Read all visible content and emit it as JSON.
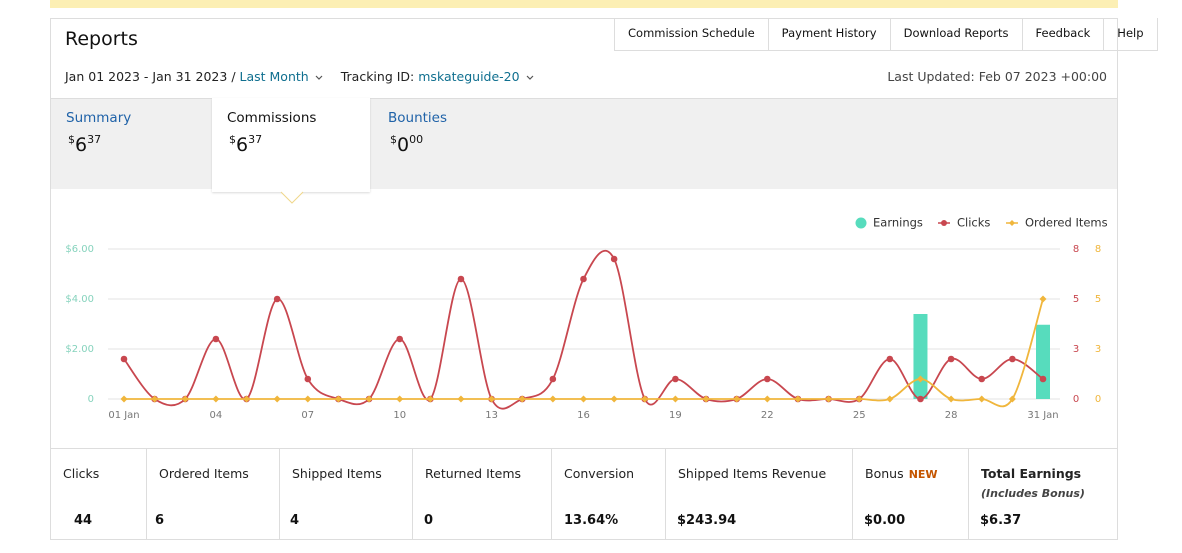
{
  "header": {
    "title": "Reports",
    "date_range": "Jan 01 2023 - Jan 31 2023",
    "separator": "/",
    "period": "Last Month",
    "tracking_label": "Tracking ID:",
    "tracking_id": "mskateguide-20",
    "last_updated": "Last Updated: Feb 07 2023 +00:00"
  },
  "nav": [
    "Commission Schedule",
    "Payment History",
    "Download Reports",
    "Feedback",
    "Help"
  ],
  "summary_tabs": [
    {
      "label": "Summary",
      "currency": "$",
      "whole": "6",
      "fraction": "37"
    },
    {
      "label": "Commissions",
      "currency": "$",
      "whole": "6",
      "fraction": "37"
    },
    {
      "label": "Bounties",
      "currency": "$",
      "whole": "0",
      "fraction": "00"
    }
  ],
  "chart_data": {
    "type": "line",
    "categories": [
      "01 Jan",
      null,
      null,
      "04",
      null,
      null,
      "07",
      null,
      null,
      "10",
      null,
      null,
      "13",
      null,
      null,
      "16",
      null,
      null,
      "19",
      null,
      null,
      "22",
      null,
      null,
      "25",
      null,
      null,
      "28",
      null,
      null,
      "31 Jan"
    ],
    "series": [
      {
        "name": "Earnings",
        "type": "bar",
        "color": "#57dcbd",
        "axis": "y",
        "values": [
          0,
          0,
          0,
          0,
          0,
          0,
          0,
          0,
          0,
          0,
          0,
          0,
          0,
          0,
          0,
          0,
          0,
          0,
          0,
          0,
          0,
          0,
          0,
          0,
          0,
          0,
          3.4,
          0,
          0,
          0,
          2.97
        ]
      },
      {
        "name": "Clicks",
        "type": "line",
        "color": "#c8474f",
        "axis": "y2",
        "values": [
          2,
          0,
          0,
          3,
          0,
          5,
          1,
          0,
          0,
          3,
          0,
          6,
          0,
          0,
          1,
          6,
          7,
          0,
          1,
          0,
          0,
          1,
          0,
          0,
          0,
          2,
          0,
          2,
          1,
          2,
          1
        ]
      },
      {
        "name": "Ordered Items",
        "type": "line",
        "color": "#f0b63c",
        "axis": "y3",
        "values": [
          0,
          0,
          0,
          0,
          0,
          0,
          0,
          0,
          0,
          0,
          0,
          0,
          0,
          0,
          0,
          0,
          0,
          0,
          0,
          0,
          0,
          0,
          0,
          0,
          0,
          0,
          1,
          0,
          0,
          0,
          5
        ]
      }
    ],
    "ylim": [
      0,
      6
    ],
    "yticks": [
      0,
      {
        "value": 2,
        "label": "$2.00"
      },
      {
        "value": 4,
        "label": "$4.00"
      },
      {
        "value": 6,
        "label": "$6.00"
      }
    ],
    "y2lim": [
      0,
      7.5
    ],
    "y2ticks": [
      0,
      {
        "value": 2.5,
        "label": "3"
      },
      5,
      {
        "value": 7.5,
        "label": "8"
      }
    ],
    "y3lim": [
      0,
      7.5
    ],
    "y3ticks": [
      0,
      {
        "value": 2.5,
        "label": "3"
      },
      5,
      {
        "value": 7.5,
        "label": "8"
      }
    ],
    "grid": true,
    "legend": "top-right"
  },
  "stats": [
    {
      "label": "Clicks",
      "value": "44"
    },
    {
      "label": "Ordered Items",
      "value": "6"
    },
    {
      "label": "Shipped Items",
      "value": "4"
    },
    {
      "label": "Returned Items",
      "value": "0"
    },
    {
      "label": "Conversion",
      "value": "13.64%"
    },
    {
      "label": "Shipped Items Revenue",
      "value": "$243.94"
    },
    {
      "label": "Bonus",
      "badge": "NEW",
      "value": "$0.00"
    },
    {
      "label": "Total Earnings",
      "note": "(Includes Bonus)",
      "value": "$6.37"
    }
  ]
}
